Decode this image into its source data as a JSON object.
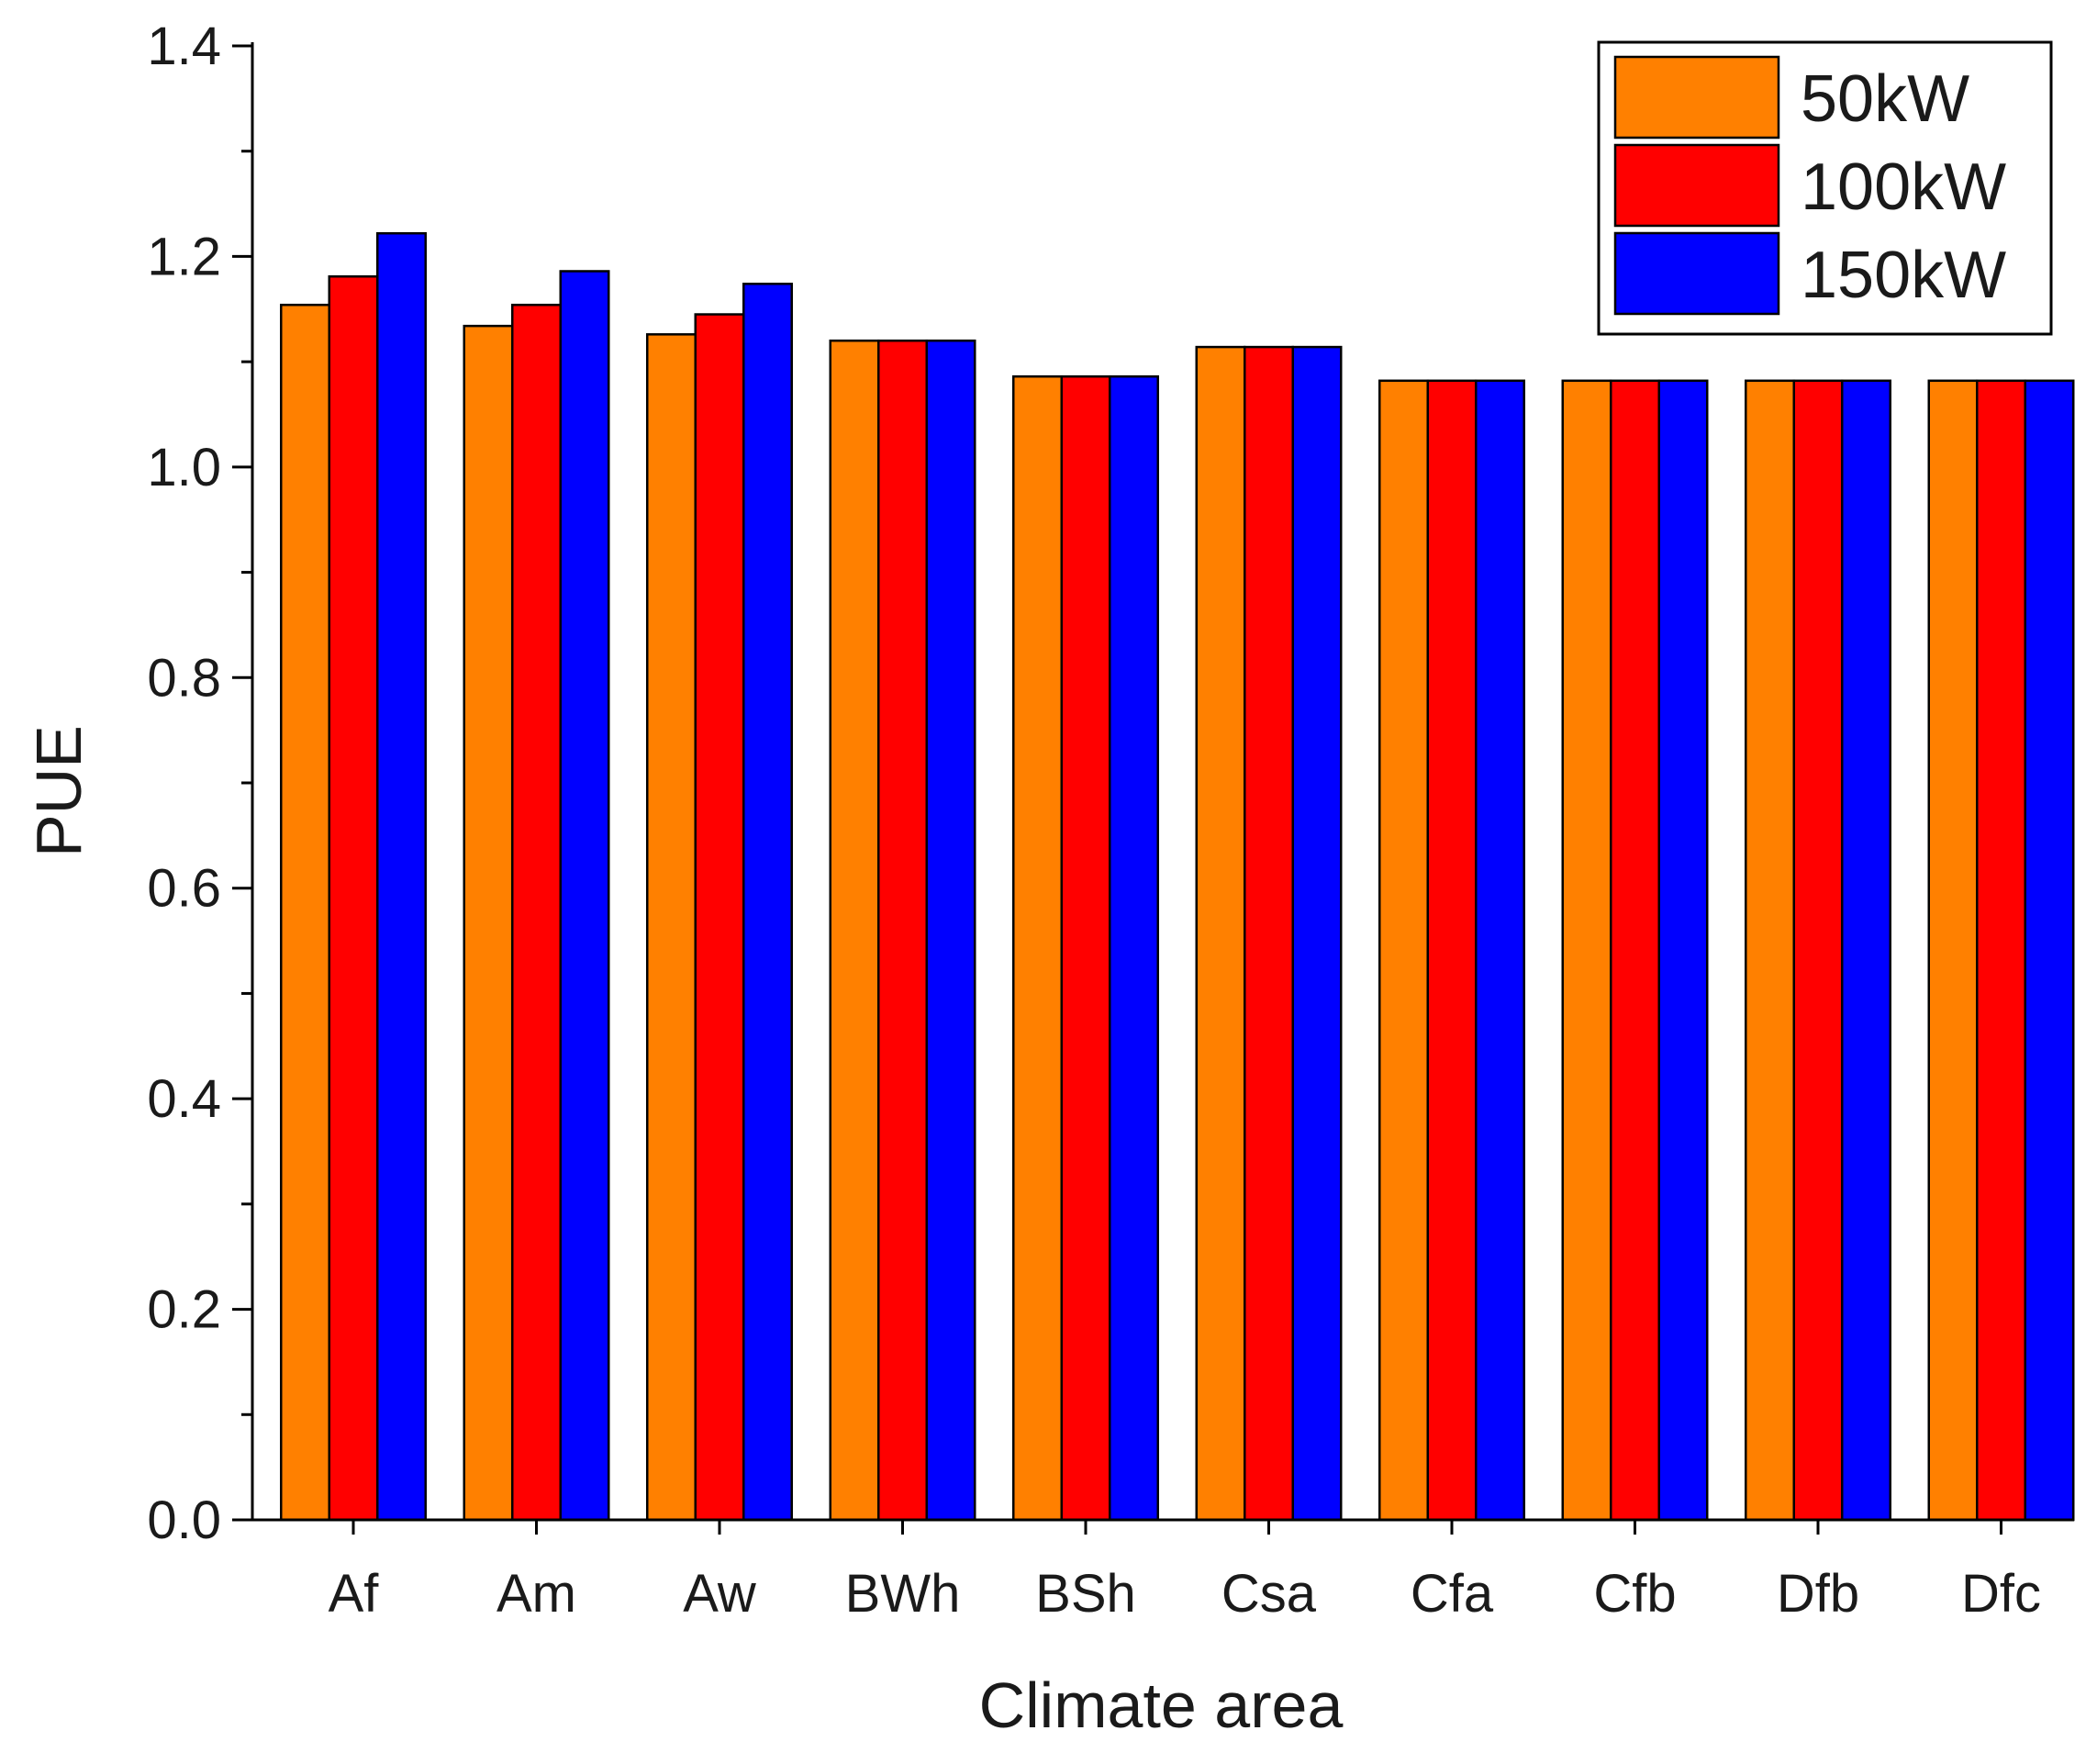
{
  "chart_data": {
    "type": "bar",
    "title": "",
    "xlabel": "Climate area",
    "ylabel": "PUE",
    "ylim": [
      0,
      1.4
    ],
    "y_ticks": [
      "0.0",
      "0.2",
      "0.4",
      "0.6",
      "0.8",
      "1.0",
      "1.2",
      "1.4"
    ],
    "categories": [
      "Af",
      "Am",
      "Aw",
      "BWh",
      "BSh",
      "Csa",
      "Cfa",
      "Cfb",
      "Dfb",
      "Dfc"
    ],
    "series": [
      {
        "name": "50kW",
        "color": "#ff8000",
        "values": [
          1.154,
          1.134,
          1.126,
          1.12,
          1.086,
          1.114,
          1.082,
          1.082,
          1.082,
          1.082
        ]
      },
      {
        "name": "100kW",
        "color": "#ff0000",
        "values": [
          1.181,
          1.154,
          1.145,
          1.12,
          1.086,
          1.114,
          1.082,
          1.082,
          1.082,
          1.082
        ]
      },
      {
        "name": "150kW",
        "color": "#0000ff",
        "values": [
          1.222,
          1.186,
          1.174,
          1.12,
          1.086,
          1.114,
          1.082,
          1.082,
          1.082,
          1.082
        ]
      }
    ],
    "legend": {
      "position": "top-right"
    },
    "grid": false
  }
}
